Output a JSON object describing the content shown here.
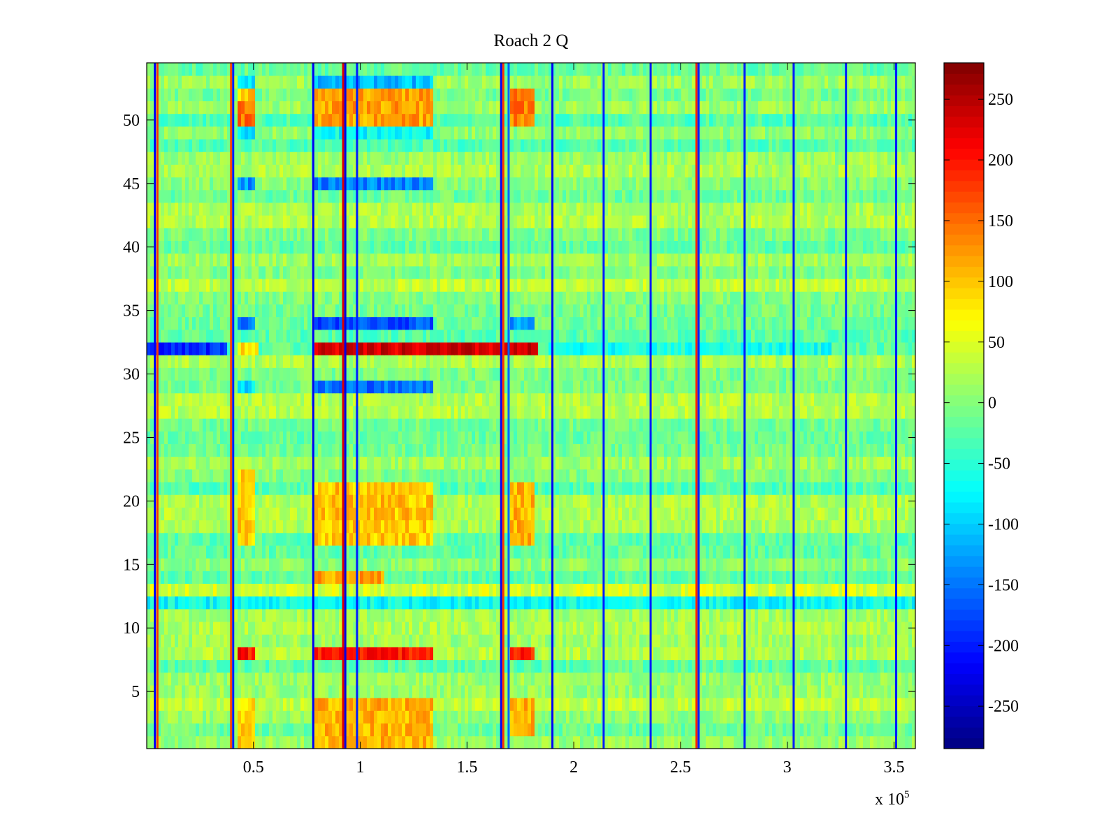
{
  "chart_data": {
    "type": "heatmap",
    "title": "Roach 2 Q",
    "xlabel": "",
    "ylabel": "",
    "x_multiplier_label": "x 10",
    "x_multiplier_exponent": "5",
    "xlim": [
      0,
      360000
    ],
    "ylim": [
      0.5,
      54.5
    ],
    "xticks": [
      0.5,
      1,
      1.5,
      2,
      2.5,
      3,
      3.5
    ],
    "xtick_labels": [
      "0.5",
      "1",
      "1.5",
      "2",
      "2.5",
      "3",
      "3.5"
    ],
    "yticks": [
      5,
      10,
      15,
      20,
      25,
      30,
      35,
      40,
      45,
      50
    ],
    "ytick_labels": [
      "5",
      "10",
      "15",
      "20",
      "25",
      "30",
      "35",
      "40",
      "45",
      "50"
    ],
    "rows": 54,
    "colormap": "jet",
    "clim": [
      -285,
      280
    ],
    "colorbar": {
      "ticks": [
        -250,
        -200,
        -150,
        -100,
        -50,
        0,
        50,
        100,
        150,
        200,
        250
      ],
      "tick_labels": [
        "-250",
        "-200",
        "-150",
        "-100",
        "-50",
        "0",
        "50",
        "100",
        "150",
        "200",
        "250"
      ]
    },
    "background_level": 0,
    "notes": "Noisy background around 0 (green). Vertical stripes and block features estimated from the figure.",
    "vertical_lines": [
      {
        "x": 3800,
        "value": -220
      },
      {
        "x": 5000,
        "value": 180
      },
      {
        "x": 39500,
        "value": 170
      },
      {
        "x": 40500,
        "value": -200
      },
      {
        "x": 78000,
        "value": -220
      },
      {
        "x": 92000,
        "value": 230
      },
      {
        "x": 93000,
        "value": -230
      },
      {
        "x": 98500,
        "value": -200
      },
      {
        "x": 166000,
        "value": -220
      },
      {
        "x": 167000,
        "value": 180
      },
      {
        "x": 169500,
        "value": -160
      },
      {
        "x": 190000,
        "value": -220
      },
      {
        "x": 214000,
        "value": -200
      },
      {
        "x": 236000,
        "value": -200
      },
      {
        "x": 257500,
        "value": 190
      },
      {
        "x": 258500,
        "value": -200
      },
      {
        "x": 280000,
        "value": -200
      },
      {
        "x": 303000,
        "value": -200
      },
      {
        "x": 327500,
        "value": -200
      },
      {
        "x": 351000,
        "value": -200
      }
    ],
    "blocks": [
      {
        "x": [
          0,
          38000
        ],
        "rows": [
          32,
          32
        ],
        "value": -190
      },
      {
        "x": 320000,
        "rows_note": "end segment",
        "value": -150
      },
      {
        "x": [
          42000,
          52000
        ],
        "rows": [
          32,
          32
        ],
        "value": 80
      },
      {
        "x": [
          79000,
          184000
        ],
        "rows": [
          32,
          32
        ],
        "value": 230
      },
      {
        "x": [
          188000,
          320000
        ],
        "rows": [
          32,
          32
        ],
        "value": -60
      },
      {
        "x": [
          42000,
          51000
        ],
        "rows": [
          50,
          51
        ],
        "value": 150
      },
      {
        "x": [
          42000,
          51000
        ],
        "rows": [
          52,
          52
        ],
        "value": 100
      },
      {
        "x": [
          42000,
          51000
        ],
        "rows": [
          49,
          49
        ],
        "value": -90
      },
      {
        "x": [
          42000,
          51000
        ],
        "rows": [
          53,
          53
        ],
        "value": -90
      },
      {
        "x": [
          79000,
          134000
        ],
        "rows": [
          50,
          52
        ],
        "value": 120
      },
      {
        "x": [
          79000,
          134000
        ],
        "rows": [
          49,
          49
        ],
        "value": -70
      },
      {
        "x": [
          79000,
          134000
        ],
        "rows": [
          53,
          53
        ],
        "value": -110
      },
      {
        "x": [
          170000,
          181000
        ],
        "rows": [
          50,
          52
        ],
        "value": 140
      },
      {
        "x": [
          79000,
          134000
        ],
        "rows": [
          45,
          45
        ],
        "value": -140
      },
      {
        "x": [
          42000,
          51000
        ],
        "rows": [
          45,
          45
        ],
        "value": -130
      },
      {
        "x": [
          79000,
          134000
        ],
        "rows": [
          34,
          34
        ],
        "value": -170
      },
      {
        "x": [
          42000,
          51000
        ],
        "rows": [
          34,
          34
        ],
        "value": -150
      },
      {
        "x": [
          170000,
          181000
        ],
        "rows": [
          34,
          34
        ],
        "value": -130
      },
      {
        "x": [
          79000,
          134000
        ],
        "rows": [
          29,
          29
        ],
        "value": -150
      },
      {
        "x": [
          42000,
          51000
        ],
        "rows": [
          29,
          29
        ],
        "value": -90
      },
      {
        "x": [
          42000,
          51000
        ],
        "rows": [
          17,
          22
        ],
        "value": 90
      },
      {
        "x": [
          79000,
          134000
        ],
        "rows": [
          17,
          21
        ],
        "value": 100
      },
      {
        "x": [
          170000,
          181000
        ],
        "rows": [
          17,
          21
        ],
        "value": 110
      },
      {
        "x": [
          79000,
          112000
        ],
        "rows": [
          13,
          14
        ],
        "value": 120
      },
      {
        "x": [
          79000,
          134000
        ],
        "rows": [
          8,
          8
        ],
        "value": 200
      },
      {
        "x": [
          42000,
          51000
        ],
        "rows": [
          8,
          8
        ],
        "value": 200
      },
      {
        "x": [
          170000,
          181000
        ],
        "rows": [
          8,
          8
        ],
        "value": 190
      },
      {
        "x": [
          42000,
          51000
        ],
        "rows": [
          1,
          4
        ],
        "value": 90
      },
      {
        "x": [
          79000,
          134000
        ],
        "rows": [
          1,
          4
        ],
        "value": 110
      },
      {
        "x": [
          170000,
          181000
        ],
        "rows": [
          2,
          4
        ],
        "value": 110
      },
      {
        "x": [
          0,
          360000
        ],
        "rows": [
          12,
          12
        ],
        "value": -70
      },
      {
        "x": [
          0,
          360000
        ],
        "rows": [
          13,
          13
        ],
        "value": 45
      }
    ]
  }
}
